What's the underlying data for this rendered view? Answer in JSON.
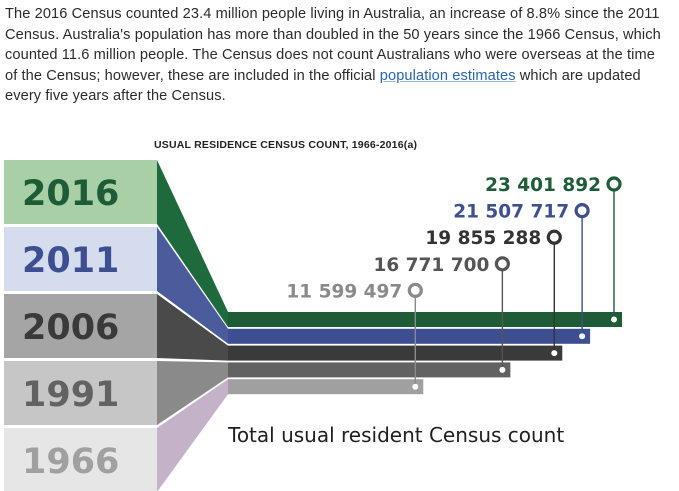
{
  "intro": {
    "text_before_link": "The 2016 Census counted 23.4 million people living in Australia, an increase of 8.8% since the 2011 Census. Australia's population has more than doubled in the 50 years since the 1966 Census, which counted 11.6 million people. The Census does not count Australians who were overseas at the time of the Census; however, these are included in the official",
    "link_text": "population estimates",
    "text_after_link": "which are updated every five years after the Census."
  },
  "chart_data": {
    "type": "bar",
    "title": "USUAL RESIDENCE CENSUS COUNT, 1966-2016(a)",
    "xlabel": "Total usual resident Census count",
    "categories": [
      "2016",
      "2011",
      "2006",
      "1991",
      "1966"
    ],
    "values": [
      23401892,
      21507717,
      19855288,
      16771700,
      11599497
    ],
    "value_labels": [
      "23 401 892",
      "21 507 717",
      "19 855 288",
      "16 771 700",
      "11 599 497"
    ],
    "colors": [
      "#1d5c36",
      "#3d4f90",
      "#3a3a3a",
      "#626262",
      "#a0a0a0"
    ],
    "label_colors": [
      "#1d5c36",
      "#3d4f90",
      "#333333",
      "#555555",
      "#8a8a8a"
    ],
    "tab_colors": [
      "#a9cfa6",
      "#d4dcee",
      "#a5a5a5",
      "#c6c6c6",
      "#e6e6e6"
    ],
    "wedge_colors": [
      "#1f6a3c",
      "#4a5c9c",
      "#4a4a4a",
      "#8a8a8a",
      "#c4b3c8"
    ]
  }
}
